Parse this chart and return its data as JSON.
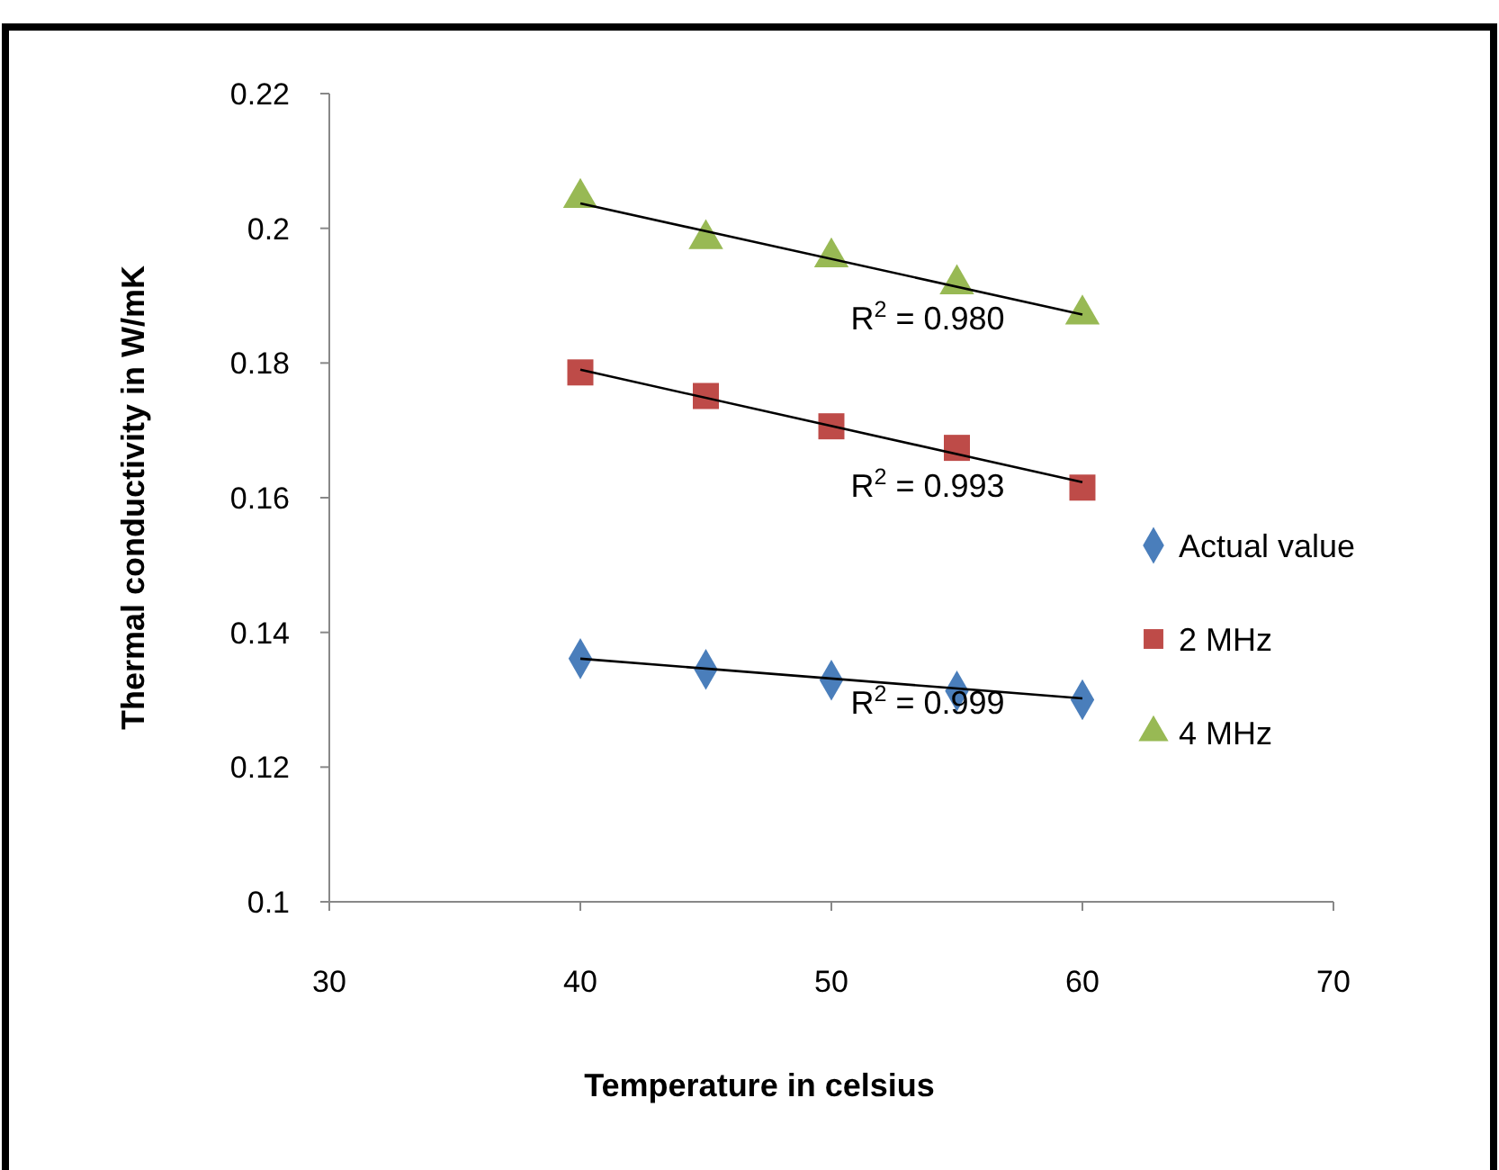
{
  "chart_data": {
    "type": "scatter",
    "xlabel": "Temperature in celsius",
    "ylabel": "Thermal conductivity in  W/mK",
    "xlim": [
      30,
      70
    ],
    "xticks": [
      30,
      40,
      50,
      60,
      70
    ],
    "ylim": [
      0.1,
      0.22
    ],
    "yticks": [
      0.1,
      0.12,
      0.14,
      0.16,
      0.18,
      0.2,
      0.22
    ],
    "grid": false,
    "legend": "right",
    "series": [
      {
        "name": "Actual value",
        "color": "#4a7ebb",
        "marker": "diamond",
        "x": [
          40,
          45,
          50,
          55,
          60
        ],
        "values": [
          0.1361,
          0.1345,
          0.1329,
          0.1313,
          0.13
        ]
      },
      {
        "name": "2 MHz",
        "color": "#be4b48",
        "marker": "square",
        "x": [
          40,
          45,
          50,
          55,
          60
        ],
        "values": [
          0.1786,
          0.1751,
          0.1706,
          0.1674,
          0.1615
        ]
      },
      {
        "name": "4 MHz",
        "color": "#98b954",
        "marker": "triangle",
        "x": [
          40,
          45,
          50,
          55,
          60
        ],
        "values": [
          0.2045,
          0.1984,
          0.1957,
          0.1917,
          0.1872
        ]
      },
      {
        "type": "line",
        "color": "#000000",
        "marker": "none",
        "x": [
          40,
          60
        ],
        "values": [
          0.1361,
          0.1302
        ]
      },
      {
        "type": "line",
        "color": "#000000",
        "marker": "none",
        "x": [
          40,
          60
        ],
        "values": [
          0.179,
          0.1623
        ]
      },
      {
        "type": "line",
        "color": "#000000",
        "marker": "none",
        "x": [
          40,
          60
        ],
        "values": [
          0.2037,
          0.1872
        ]
      }
    ],
    "annotations": [
      "R$^{2}$ = 0.999",
      "R$^{2}$ = 0.993",
      "R$^{2}$ = 0.980"
    ]
  }
}
